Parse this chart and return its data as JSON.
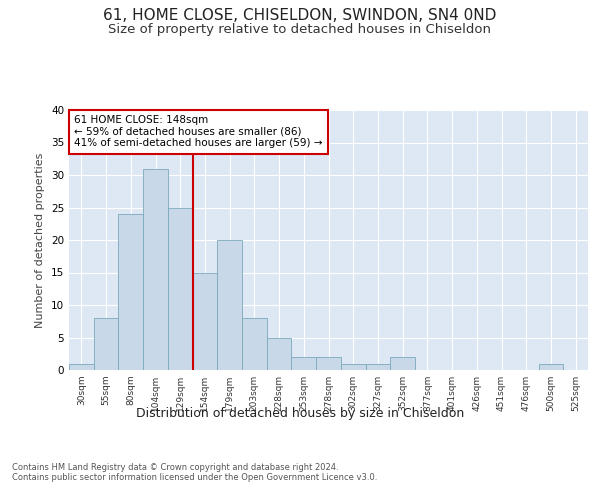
{
  "title1": "61, HOME CLOSE, CHISELDON, SWINDON, SN4 0ND",
  "title2": "Size of property relative to detached houses in Chiseldon",
  "xlabel": "Distribution of detached houses by size in Chiseldon",
  "ylabel": "Number of detached properties",
  "categories": [
    "30sqm",
    "55sqm",
    "80sqm",
    "104sqm",
    "129sqm",
    "154sqm",
    "179sqm",
    "203sqm",
    "228sqm",
    "253sqm",
    "278sqm",
    "302sqm",
    "327sqm",
    "352sqm",
    "377sqm",
    "401sqm",
    "426sqm",
    "451sqm",
    "476sqm",
    "500sqm",
    "525sqm"
  ],
  "values": [
    1,
    8,
    24,
    31,
    25,
    15,
    20,
    8,
    5,
    2,
    2,
    1,
    1,
    2,
    0,
    0,
    0,
    0,
    0,
    1,
    0
  ],
  "bar_color": "#c8d8e8",
  "bar_edge_color": "#7aaabb",
  "vline_x": 4.5,
  "vline_color": "#cc0000",
  "annotation_text": "61 HOME CLOSE: 148sqm\n← 59% of detached houses are smaller (86)\n41% of semi-detached houses are larger (59) →",
  "annotation_box_color": "#ffffff",
  "annotation_box_edge": "#cc0000",
  "ylim": [
    0,
    40
  ],
  "yticks": [
    0,
    5,
    10,
    15,
    20,
    25,
    30,
    35,
    40
  ],
  "background_color": "#dde8f4",
  "footer_text": "Contains HM Land Registry data © Crown copyright and database right 2024.\nContains public sector information licensed under the Open Government Licence v3.0.",
  "title1_fontsize": 11,
  "title2_fontsize": 9.5,
  "xlabel_fontsize": 9,
  "ylabel_fontsize": 8,
  "annot_fontsize": 7.5
}
